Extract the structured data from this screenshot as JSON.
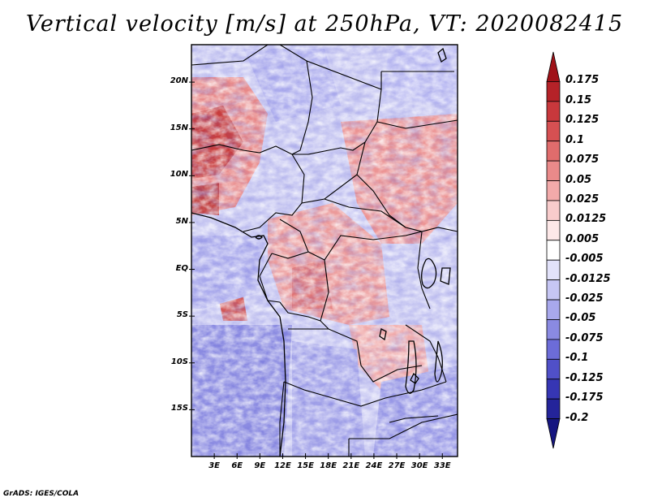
{
  "title": "Vertical velocity [m/s] at 250hPa, VT: 2020082415",
  "credit": "GrADS: IGES/COLA",
  "map": {
    "lat_ticks": [
      "20N",
      "15N",
      "10N",
      "5N",
      "EQ",
      "5S",
      "10S",
      "15S"
    ],
    "lon_ticks": [
      "3E",
      "6E",
      "9E",
      "12E",
      "15E",
      "18E",
      "21E",
      "24E",
      "27E",
      "30E",
      "33E"
    ],
    "lon_range": [
      0,
      35
    ],
    "lat_range": [
      -20,
      24
    ]
  },
  "colorbar": {
    "labels": [
      "0.175",
      "0.15",
      "0.125",
      "0.1",
      "0.075",
      "0.05",
      "0.025",
      "0.0125",
      "0.005",
      "-0.005",
      "-0.0125",
      "-0.025",
      "-0.05",
      "-0.075",
      "-0.1",
      "-0.125",
      "-0.175",
      "-0.2"
    ],
    "colors": [
      "#a01218",
      "#b52228",
      "#c8383c",
      "#d65052",
      "#e06c6c",
      "#ea8a8a",
      "#f2aaaa",
      "#f8cccc",
      "#fde8e8",
      "#ffffff",
      "#e2e2fa",
      "#c6c6f4",
      "#a8a8ec",
      "#8a8ae2",
      "#6c6cd8",
      "#5050c8",
      "#3636b4",
      "#24249a",
      "#161680"
    ]
  }
}
